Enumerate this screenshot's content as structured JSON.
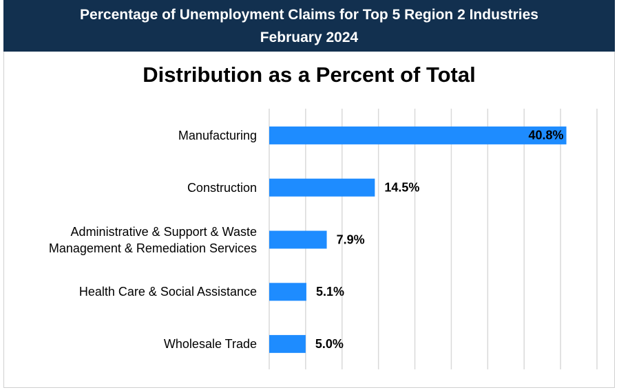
{
  "header": {
    "title": "Percentage of Unemployment Claims for Top 5 Region 2 Industries",
    "subtitle": "February 2024"
  },
  "chart_data": {
    "type": "hbar",
    "title": "Distribution as a Percent of Total",
    "categories": [
      "Manufacturing",
      "Construction",
      "Administrative & Support & Waste\nManagement & Remediation Services",
      "Health Care & Social Assistance",
      "Wholesale Trade"
    ],
    "values": [
      40.8,
      14.5,
      7.9,
      5.1,
      5.0
    ],
    "value_labels": [
      "40.8%",
      "14.5%",
      "7.9%",
      "5.1%",
      "5.0%"
    ],
    "color": "#1e8cff",
    "xlim": [
      0,
      45
    ],
    "xticks": [
      0,
      5,
      10,
      15,
      20,
      25,
      30,
      35,
      40,
      45
    ],
    "grid": true
  }
}
